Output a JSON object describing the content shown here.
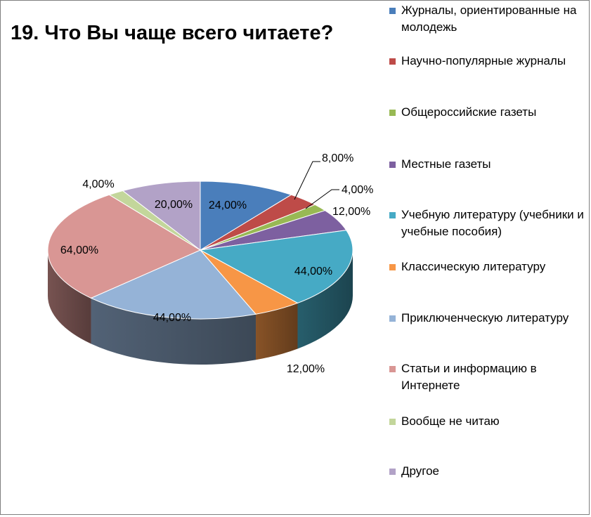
{
  "chart_data": {
    "type": "pie",
    "title": "19. Что Вы чаще всего читаете?",
    "categories": [
      "Журналы, ориентированные на молодежь",
      "Научно-популярные журналы",
      "Общероссийские газеты",
      "Местные газеты",
      "Учебную литературу (учебники и учебные пособия)",
      "Классическую литературу",
      "Приключенческую литературу",
      "Статьи и информацию в Интернете",
      "Вообще не читаю",
      "Другое"
    ],
    "values": [
      24,
      8,
      4,
      12,
      44,
      12,
      44,
      64,
      4,
      20
    ],
    "labels": [
      "24,00%",
      "8,00%",
      "4,00%",
      "12,00%",
      "44,00%",
      "12,00%",
      "44,00%",
      "64,00%",
      "4,00%",
      "20,00%"
    ],
    "colors": [
      "#4a7ebb",
      "#be4b48",
      "#98b954",
      "#7d60a0",
      "#46aac5",
      "#f79646",
      "#95b3d7",
      "#d99694",
      "#c3d69b",
      "#b2a2c7"
    ],
    "legend_position": "right",
    "style": "3d"
  }
}
